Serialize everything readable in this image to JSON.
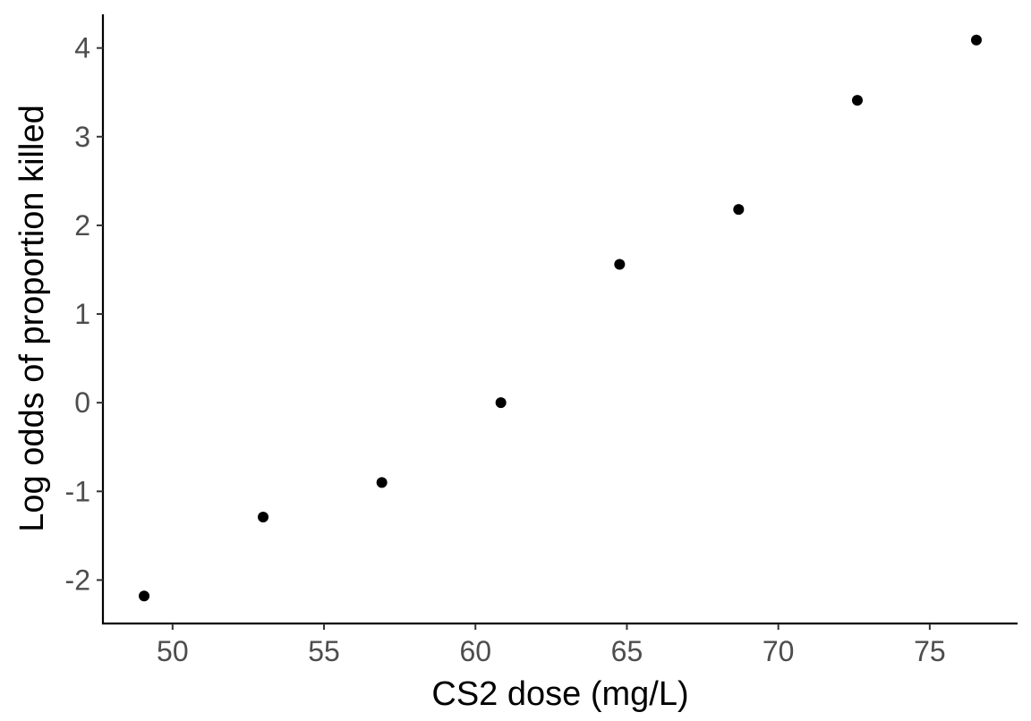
{
  "chart_data": {
    "type": "scatter",
    "title": "",
    "xlabel": "CS2 dose (mg/L)",
    "ylabel": "Log odds of proportion killed",
    "xlim": [
      47.7,
      77.9
    ],
    "ylim": [
      -2.49,
      4.38
    ],
    "xticks": [
      50,
      55,
      60,
      65,
      70,
      75
    ],
    "yticks": [
      -2,
      -1,
      0,
      1,
      2,
      3,
      4
    ],
    "grid": false,
    "legend": "none",
    "point_color": "#000000",
    "x": [
      49.06,
      52.99,
      56.91,
      60.84,
      64.76,
      68.69,
      72.61,
      76.54
    ],
    "y": [
      -2.18,
      -1.29,
      -0.9,
      0.0,
      1.56,
      2.18,
      3.41,
      4.09
    ]
  }
}
